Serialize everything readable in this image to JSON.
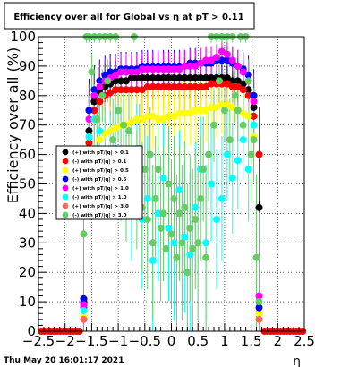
{
  "chart_data": {
    "type": "scatter",
    "title": "Efficiency over all for Global vs   η at pT > 0.11",
    "xlabel": "η",
    "ylabel": "Efficiency over all (%)",
    "xlim": [
      -2.5,
      2.5
    ],
    "ylim": [
      0,
      100
    ],
    "x_ticks": [
      "−2.5",
      "−2",
      "−1.5",
      "−1",
      "−0.5",
      "0",
      "0.5",
      "1",
      "1.5",
      "2",
      "2.5"
    ],
    "y_ticks": [
      "0",
      "10",
      "20",
      "30",
      "40",
      "50",
      "60",
      "70",
      "80",
      "90",
      "100"
    ],
    "grid": true,
    "legend_position": "middle-left",
    "timestamp": "Thu May 20 16:01:17 2021",
    "series": [
      {
        "name": "(+) with pT/|q| > 0.1",
        "color": "#000000",
        "x": [
          -1.65,
          -1.55,
          -1.45,
          -1.35,
          -1.25,
          -1.15,
          -1.05,
          -0.95,
          -0.85,
          -0.75,
          -0.65,
          -0.55,
          -0.45,
          -0.35,
          -0.25,
          -0.15,
          -0.05,
          0.05,
          0.15,
          0.25,
          0.35,
          0.45,
          0.55,
          0.65,
          0.75,
          0.85,
          0.95,
          1.05,
          1.15,
          1.25,
          1.35,
          1.45,
          1.55,
          1.65
        ],
        "y": [
          10,
          68,
          78,
          81,
          83,
          84,
          85,
          85,
          85,
          86,
          86,
          86,
          86,
          86,
          86,
          86,
          86,
          86,
          86,
          86,
          86,
          86,
          86,
          86,
          86,
          86,
          86,
          86,
          85,
          85,
          84,
          82,
          76,
          42
        ]
      },
      {
        "name": "(-) with pT/|q| > 0.1",
        "color": "#ff0000",
        "x": [
          -1.65,
          -1.55,
          -1.45,
          -1.35,
          -1.25,
          -1.15,
          -1.05,
          -0.95,
          -0.85,
          -0.75,
          -0.65,
          -0.55,
          -0.45,
          -0.35,
          -0.25,
          -0.15,
          -0.05,
          0.05,
          0.15,
          0.25,
          0.35,
          0.45,
          0.55,
          0.65,
          0.75,
          0.85,
          0.95,
          1.05,
          1.15,
          1.25,
          1.35,
          1.45,
          1.55,
          1.65
        ],
        "y": [
          8,
          64,
          75,
          78,
          80,
          81,
          82,
          82,
          82,
          82,
          82,
          82,
          83,
          83,
          83,
          83,
          83,
          83,
          83,
          83,
          83,
          83,
          83,
          83,
          84,
          84,
          84,
          84,
          83,
          83,
          82,
          80,
          73,
          60
        ]
      },
      {
        "name": "(+) with pT/|q| > 0.5",
        "color": "#ffff00",
        "x": [
          -1.65,
          -1.55,
          -1.45,
          -1.35,
          -1.25,
          -1.15,
          -1.05,
          -0.95,
          -0.85,
          -0.75,
          -0.65,
          -0.55,
          -0.45,
          -0.35,
          -0.25,
          -0.15,
          -0.05,
          0.05,
          0.15,
          0.25,
          0.35,
          0.45,
          0.55,
          0.65,
          0.75,
          0.85,
          0.95,
          1.05,
          1.15,
          1.25,
          1.35,
          1.45,
          1.55,
          1.65
        ],
        "y": [
          5,
          58,
          62,
          65,
          67,
          68,
          69,
          70,
          70,
          71,
          72,
          72,
          73,
          73,
          72,
          72,
          73,
          73,
          74,
          74,
          74,
          75,
          75,
          75,
          76,
          76,
          77,
          77,
          76,
          75,
          74,
          73,
          66,
          6
        ]
      },
      {
        "name": "(-) with pT/|q| > 0.5",
        "color": "#0000ff",
        "x": [
          -1.65,
          -1.55,
          -1.45,
          -1.35,
          -1.25,
          -1.15,
          -1.05,
          -0.95,
          -0.85,
          -0.75,
          -0.65,
          -0.55,
          -0.45,
          -0.35,
          -0.25,
          -0.15,
          -0.05,
          0.05,
          0.15,
          0.25,
          0.35,
          0.45,
          0.55,
          0.65,
          0.75,
          0.85,
          0.95,
          1.05,
          1.15,
          1.25,
          1.35,
          1.45,
          1.55,
          1.65
        ],
        "y": [
          11,
          75,
          82,
          85,
          87,
          88,
          88,
          89,
          89,
          89,
          89,
          90,
          90,
          90,
          90,
          90,
          90,
          90,
          90,
          90,
          91,
          91,
          91,
          91,
          91,
          92,
          92,
          92,
          91,
          90,
          89,
          87,
          80,
          8
        ]
      },
      {
        "name": "(+) with pT/|q| > 1.0",
        "color": "#ff00ff",
        "x": [
          -1.65,
          -1.55,
          -1.45,
          -1.35,
          -1.25,
          -1.15,
          -1.05,
          -0.95,
          -0.85,
          -0.75,
          -0.65,
          -0.55,
          -0.45,
          -0.35,
          -0.25,
          -0.15,
          -0.05,
          0.05,
          0.15,
          0.25,
          0.35,
          0.45,
          0.55,
          0.65,
          0.75,
          0.85,
          0.95,
          1.05,
          1.15,
          1.25,
          1.35,
          1.45,
          1.55,
          1.65
        ],
        "y": [
          9,
          72,
          80,
          83,
          85,
          86,
          87,
          88,
          88,
          88,
          88,
          89,
          89,
          89,
          89,
          89,
          89,
          89,
          89,
          90,
          90,
          90,
          91,
          92,
          92,
          93,
          95,
          94,
          92,
          90,
          88,
          85,
          78,
          12
        ]
      },
      {
        "name": "(-) with pT/|q| > 1.0",
        "color": "#00ffff",
        "x": [
          -1.65,
          -1.55,
          -1.45,
          -1.35,
          -1.25,
          -1.15,
          -1.05,
          -0.95,
          -0.85,
          -0.75,
          -0.65,
          -0.55,
          -0.45,
          -0.35,
          -0.25,
          -0.15,
          -0.05,
          0.05,
          0.15,
          0.25,
          0.35,
          0.45,
          0.55,
          0.65,
          0.75,
          0.85,
          0.95,
          1.05,
          1.15,
          1.25,
          1.35,
          1.45,
          1.55,
          1.65
        ],
        "y": [
          7,
          66,
          72,
          68,
          60,
          58,
          62,
          55,
          50,
          45,
          62,
          38,
          45,
          24,
          40,
          52,
          35,
          30,
          48,
          32,
          26,
          42,
          55,
          30,
          50,
          38,
          45,
          60,
          52,
          58,
          65,
          55,
          70,
          10
        ]
      },
      {
        "name": "(+) with pT/|q| > 3.0",
        "color": "#ff6666",
        "x": [
          -1.65,
          1.65
        ],
        "y": [
          4,
          4
        ]
      },
      {
        "name": "(-) with pT/|q| > 3.0",
        "color": "#66cc66",
        "x": [
          -1.65,
          -1.6,
          -1.55,
          -1.5,
          -1.45,
          -1.4,
          -1.35,
          -1.3,
          -1.25,
          -1.2,
          -1.15,
          -1.1,
          -1.05,
          -1.0,
          -0.95,
          -0.9,
          -0.85,
          -0.8,
          -0.75,
          -0.7,
          -0.65,
          -0.6,
          -0.55,
          -0.5,
          -0.45,
          -0.4,
          -0.35,
          -0.3,
          -0.25,
          -0.2,
          -0.15,
          -0.1,
          -0.05,
          0.0,
          0.05,
          0.1,
          0.15,
          0.2,
          0.25,
          0.3,
          0.35,
          0.4,
          0.45,
          0.5,
          0.55,
          0.6,
          0.65,
          0.7,
          0.75,
          0.8,
          0.85,
          0.9,
          0.95,
          1.0,
          1.05,
          1.1,
          1.15,
          1.2,
          1.25,
          1.3,
          1.35,
          1.4,
          1.45,
          1.5,
          1.55,
          1.6,
          1.65
        ],
        "y": [
          33,
          100,
          100,
          88,
          100,
          72,
          100,
          80,
          100,
          85,
          100,
          65,
          100,
          75,
          60,
          70,
          50,
          68,
          55,
          100,
          48,
          62,
          42,
          55,
          38,
          60,
          30,
          45,
          55,
          35,
          40,
          28,
          50,
          33,
          45,
          25,
          40,
          30,
          42,
          20,
          35,
          28,
          38,
          30,
          45,
          55,
          25,
          60,
          100,
          70,
          100,
          85,
          100,
          75,
          100,
          65,
          100,
          80,
          75,
          100,
          70,
          100,
          85,
          60,
          65,
          25,
          10
        ]
      }
    ]
  }
}
